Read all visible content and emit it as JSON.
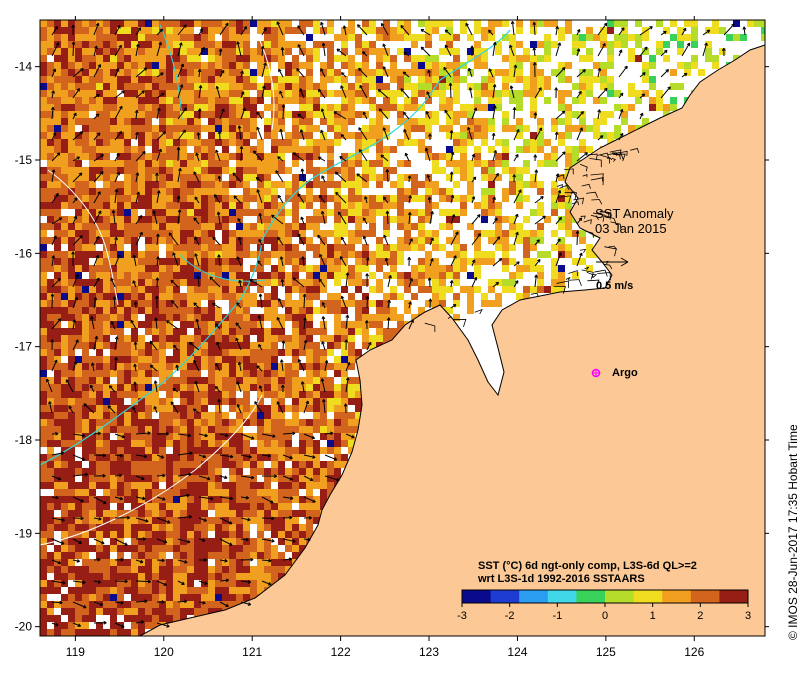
{
  "map": {
    "title": "SST Anomaly",
    "date": "03 Jan 2015",
    "vector_scale_label": "0.5 m/s",
    "marker_label": "Argo",
    "marker_color": "#ff00ff",
    "land_color": "#fbc896",
    "lon_range": [
      118.6,
      126.8
    ],
    "lat_range": [
      -20.1,
      -13.5
    ],
    "x_ticks": [
      "119",
      "120",
      "121",
      "122",
      "123",
      "124",
      "125",
      "126"
    ],
    "y_ticks": [
      "-14",
      "-15",
      "-16",
      "-17",
      "-18",
      "-19",
      "-20"
    ]
  },
  "colorbar": {
    "caption_line1": "SST (°C) 6d ngt-only comp, L3S-6d QL>=2",
    "caption_line2": "wrt L3S-1d 1992-2016 SSTAARS",
    "ticks": [
      "-3",
      "-2",
      "-1",
      "0",
      "1",
      "2",
      "3"
    ],
    "range": [
      -3,
      3
    ],
    "colors": [
      "#0a0a8c",
      "#1e3cd2",
      "#2a9df0",
      "#40d8e8",
      "#38d25a",
      "#b4dc28",
      "#f0dc1e",
      "#f0a01e",
      "#d2641e",
      "#961e14"
    ]
  },
  "credit": "© IMOS 28-Jun-2017 17:35 Hobart Time"
}
